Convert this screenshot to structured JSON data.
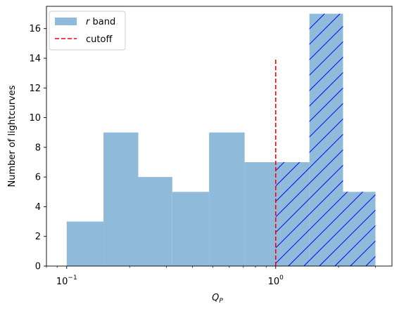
{
  "chart_data": {
    "type": "bar",
    "x_scale": "log",
    "xlim": [
      0.08,
      3.6
    ],
    "ylim": [
      0,
      17.5
    ],
    "bins": [
      {
        "x0": 0.1,
        "x1": 0.15,
        "count": 3
      },
      {
        "x0": 0.15,
        "x1": 0.22,
        "count": 9
      },
      {
        "x0": 0.22,
        "x1": 0.32,
        "count": 6
      },
      {
        "x0": 0.32,
        "x1": 0.48,
        "count": 5
      },
      {
        "x0": 0.48,
        "x1": 0.71,
        "count": 9
      },
      {
        "x0": 0.71,
        "x1": 1.05,
        "count": 7
      },
      {
        "x0": 1.05,
        "x1": 1.45,
        "count": 7
      },
      {
        "x0": 1.45,
        "x1": 2.1,
        "count": 17
      },
      {
        "x0": 2.1,
        "x1": 3.0,
        "count": 5
      }
    ],
    "cutoff": {
      "x": 1.0,
      "y_top": 14
    },
    "hatch_from_x": 1.0,
    "x_ticks": [
      {
        "value": 0.1,
        "base": "10",
        "exp": "−1"
      },
      {
        "value": 1.0,
        "base": "10",
        "exp": "0"
      }
    ],
    "y_ticks": [
      0,
      2,
      4,
      6,
      8,
      10,
      12,
      14,
      16
    ],
    "xlabel": {
      "main": "Q",
      "sub": "P"
    },
    "ylabel": "Number of lightcurves",
    "legend": {
      "placement": "top-left",
      "entries": [
        {
          "italic": "r",
          "rest": " band"
        },
        {
          "label": "cutoff"
        }
      ]
    },
    "colors": {
      "bar": "#8fbad9",
      "hatch": "#0000ff",
      "cutoff": "#ff0000"
    }
  }
}
